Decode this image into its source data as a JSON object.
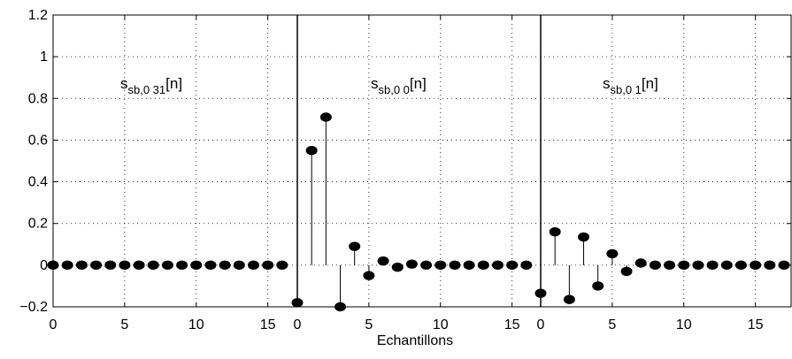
{
  "chart_data": {
    "type": "stem",
    "xlabel": "Echantillons",
    "ylim": [
      -0.2,
      1.2
    ],
    "yticks": [
      -0.2,
      0,
      0.2,
      0.4,
      0.6,
      0.8,
      1,
      1.2
    ],
    "ytick_labels": [
      "−0.2",
      "0",
      "0.2",
      "0.4",
      "0.6",
      "0.8",
      "1",
      "1.2"
    ],
    "grid": true,
    "panels": [
      {
        "label_main": "s",
        "label_sub": "sb,0 31",
        "label_tail": "[n]",
        "xticks": [
          0,
          5,
          10,
          15
        ],
        "xtick_labels": [
          "0",
          "5",
          "10",
          "15"
        ],
        "x": [
          0,
          1,
          2,
          3,
          4,
          5,
          6,
          7,
          8,
          9,
          10,
          11,
          12,
          13,
          14,
          15,
          16
        ],
        "y": [
          0,
          0,
          0,
          0,
          0,
          0,
          0,
          0,
          0,
          0,
          0,
          0,
          0,
          0,
          0,
          0,
          0
        ]
      },
      {
        "label_main": "s",
        "label_sub": "sb,0 0",
        "label_tail": "[n]",
        "xticks": [
          0,
          5,
          10,
          15
        ],
        "xtick_labels": [
          "0",
          "5",
          "10",
          "15"
        ],
        "x": [
          0,
          1,
          2,
          3,
          4,
          5,
          6,
          7,
          8,
          9,
          10,
          11,
          12,
          13,
          14,
          15,
          16
        ],
        "y": [
          -0.18,
          0.55,
          0.71,
          -0.2,
          0.09,
          -0.05,
          0.02,
          -0.01,
          0.005,
          0,
          0,
          0,
          0,
          0,
          0,
          0,
          0
        ]
      },
      {
        "label_main": "s",
        "label_sub": "sb,0 1",
        "label_tail": "[n]",
        "xticks": [
          0,
          5,
          10,
          15
        ],
        "xtick_labels": [
          "0",
          "5",
          "10",
          "15"
        ],
        "x": [
          0,
          1,
          2,
          3,
          4,
          5,
          6,
          7,
          8,
          9,
          10,
          11,
          12,
          13,
          14,
          15,
          16,
          17
        ],
        "y": [
          -0.135,
          0.16,
          -0.165,
          0.135,
          -0.1,
          0.055,
          -0.03,
          0.01,
          0,
          0,
          0,
          0,
          0,
          0,
          0,
          0,
          0,
          0
        ]
      }
    ]
  }
}
